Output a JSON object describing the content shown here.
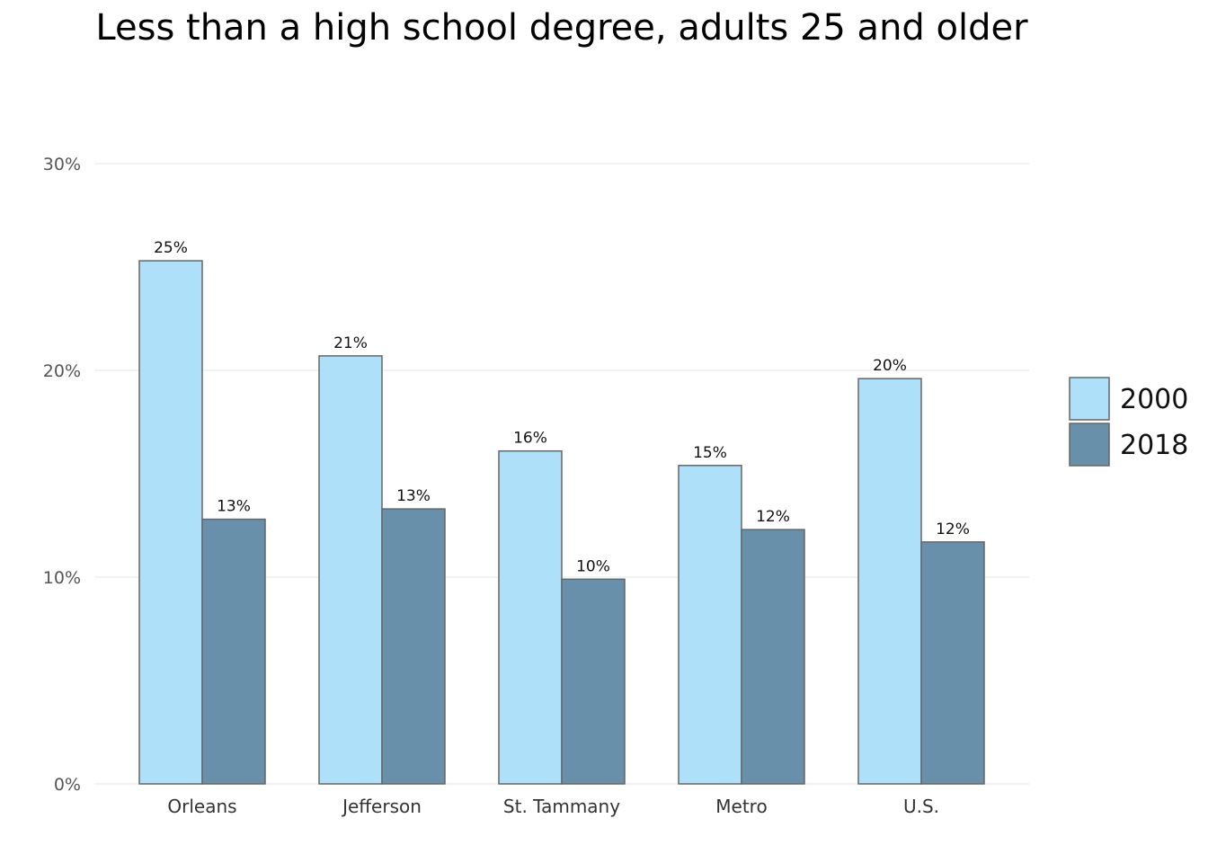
{
  "chart_data": {
    "type": "bar",
    "title": "Less than a high school degree, adults 25 and older",
    "xlabel": "",
    "ylabel": "",
    "categories": [
      "Orleans",
      "Jefferson",
      "St. Tammany",
      "Metro",
      "U.S."
    ],
    "series": [
      {
        "name": "2000",
        "color": "#aee0fa",
        "values": [
          25.3,
          20.7,
          16.1,
          15.4,
          19.6
        ],
        "labels": [
          "25%",
          "21%",
          "16%",
          "15%",
          "20%"
        ]
      },
      {
        "name": "2018",
        "color": "#6890aa",
        "values": [
          12.8,
          13.3,
          9.9,
          12.3,
          11.7
        ],
        "labels": [
          "13%",
          "13%",
          "10%",
          "12%",
          "12%"
        ]
      }
    ],
    "ylim": [
      0,
      30
    ],
    "yticks": [
      0,
      10,
      20,
      30
    ],
    "ytick_labels": [
      "0%",
      "10%",
      "20%",
      "30%"
    ],
    "grid": true,
    "legend_position": "right"
  }
}
